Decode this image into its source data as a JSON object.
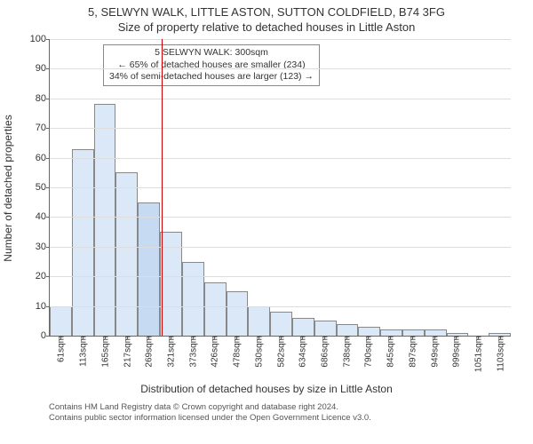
{
  "titles": {
    "main": "5, SELWYN WALK, LITTLE ASTON, SUTTON COLDFIELD, B74 3FG",
    "sub": "Size of property relative to detached houses in Little Aston"
  },
  "chart": {
    "type": "histogram",
    "ylabel": "Number of detached properties",
    "xlabel": "Distribution of detached houses by size in Little Aston",
    "ylim": [
      0,
      100
    ],
    "ytick_step": 10,
    "bar_fill": "#dbe8f8",
    "bar_fill_highlight": "#c6dbf2",
    "bar_stroke": "#888888",
    "grid_color": "#dddddd",
    "background": "#ffffff",
    "reference_line": {
      "x_value": 300,
      "color": "#cc0000"
    },
    "x_ticks": [
      61,
      113,
      165,
      217,
      269,
      321,
      373,
      426,
      478,
      530,
      582,
      634,
      686,
      738,
      790,
      845,
      897,
      949,
      999,
      1051,
      1103
    ],
    "x_tick_unit": "sqm",
    "values": [
      10,
      63,
      78,
      55,
      45,
      35,
      25,
      18,
      15,
      10,
      8,
      6,
      5,
      4,
      3,
      2,
      2,
      2,
      1,
      0,
      1
    ],
    "highlight_index": 4,
    "annotation": {
      "line1": "5 SELWYN WALK: 300sqm",
      "line2": "← 65% of detached houses are smaller (234)",
      "line3": "34% of semi-detached houses are larger (123) →",
      "border_color": "#888888"
    }
  },
  "footer": {
    "line1": "Contains HM Land Registry data © Crown copyright and database right 2024.",
    "line2": "Contains public sector information licensed under the Open Government Licence v3.0."
  }
}
